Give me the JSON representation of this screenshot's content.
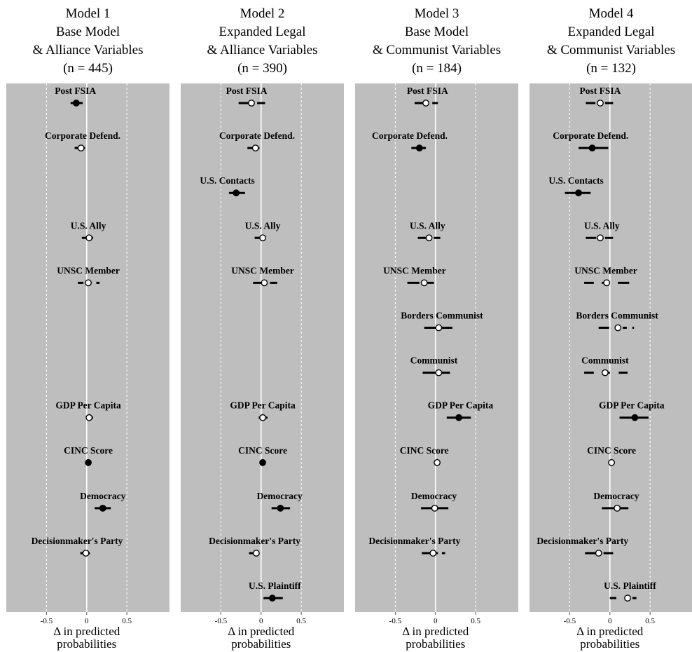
{
  "chart_data": {
    "type": "dot-whisker",
    "xaxis": {
      "label_line1": "Δ in predicted",
      "label_line2": "probabilities",
      "ticks": [
        -0.5,
        0,
        0.5
      ],
      "tick_labels": [
        "-0.5",
        "0",
        "0.5"
      ],
      "xlim": [
        -1.0,
        1.03
      ],
      "reference_lines": [
        -0.5,
        0,
        0.5
      ]
    },
    "legend": "none",
    "panel_background": "#bebebe",
    "significant_marker": "filled",
    "nonsignificant_marker": "hollow",
    "rows": [
      "Post FSIA",
      "Corporate Defend.",
      "U.S. Contacts",
      "U.S. Ally",
      "UNSC Member",
      "Borders Communist",
      "Communist",
      "GDP Per Capita",
      "CINC Score",
      "Democracy",
      "Decisionmaker's Party",
      "U.S. Plaintiff"
    ],
    "panels": [
      {
        "title": [
          "Model 1",
          "Base Model",
          "& Alliance Variables",
          "(n = 445)"
        ],
        "estimates": [
          {
            "variable": "Post FSIA",
            "label_text": "Post FSIA",
            "row": 0,
            "label_center": -0.14,
            "estimate": -0.13,
            "ci": [
              -0.2,
              -0.05
            ],
            "ci_segments": [
              [
                -0.2,
                -0.05
              ]
            ],
            "significant": true
          },
          {
            "variable": "Corporate Defend.",
            "label_text": "Corporate Defend.",
            "row": 1,
            "label_center": -0.05,
            "estimate": -0.07,
            "ci": [
              -0.15,
              -0.02
            ],
            "ci_segments": [
              [
                -0.15,
                -0.02
              ]
            ],
            "significant": false
          },
          {
            "variable": "U.S. Ally",
            "label_text": "U.S. Ally",
            "row": 3,
            "label_center": 0.02,
            "estimate": 0.03,
            "ci": [
              -0.06,
              0.08
            ],
            "ci_segments": [
              [
                -0.06,
                0.08
              ]
            ],
            "significant": false
          },
          {
            "variable": "UNSC Member",
            "label_text": "UNSC Member",
            "row": 4,
            "label_center": 0.02,
            "estimate": 0.02,
            "ci": [
              -0.11,
              0.16
            ],
            "ci_segments": [
              [
                -0.11,
                -0.04
              ],
              [
                0.12,
                0.16
              ]
            ],
            "significant": false
          },
          {
            "variable": "GDP Per Capita",
            "label_text": "GDP Per Capita",
            "row": 7,
            "label_center": 0.02,
            "estimate": 0.03,
            "ci": [
              -0.01,
              0.08
            ],
            "ci_segments": [
              [
                -0.01,
                0.08
              ]
            ],
            "significant": false
          },
          {
            "variable": "CINC Score",
            "label_text": "CINC Score",
            "row": 8,
            "label_center": 0.02,
            "estimate": 0.02,
            "ci": [
              0.0,
              0.04
            ],
            "ci_segments": [
              [
                0.0,
                0.04
              ]
            ],
            "significant": true
          },
          {
            "variable": "Democracy",
            "label_text": "Democracy",
            "row": 9,
            "label_center": 0.2,
            "estimate": 0.2,
            "ci": [
              0.1,
              0.3
            ],
            "ci_segments": [
              [
                0.1,
                0.3
              ]
            ],
            "significant": true
          },
          {
            "variable": "Decisionmaker's Party",
            "label_text": "Decisionmaker's Party",
            "row": 10,
            "label_center": -0.12,
            "estimate": -0.01,
            "ci": [
              -0.08,
              0.04
            ],
            "ci_segments": [
              [
                -0.08,
                0.04
              ]
            ],
            "significant": false
          }
        ]
      },
      {
        "title": [
          "Model 2",
          "Expanded Legal",
          "& Alliance Variables",
          "(n = 390)"
        ],
        "estimates": [
          {
            "variable": "Post FSIA",
            "label_text": "Post FSIA",
            "row": 0,
            "label_center": -0.18,
            "estimate": -0.12,
            "ci": [
              -0.28,
              0.05
            ],
            "ci_segments": [
              [
                -0.28,
                -0.15
              ],
              [
                -0.05,
                0.05
              ]
            ],
            "significant": false
          },
          {
            "variable": "Corporate Defend.",
            "label_text": "Corporate Defend.",
            "row": 1,
            "label_center": -0.05,
            "estimate": -0.07,
            "ci": [
              -0.17,
              -0.02
            ],
            "ci_segments": [
              [
                -0.17,
                -0.02
              ]
            ],
            "significant": false
          },
          {
            "variable": "U.S. Contacts",
            "label_text": "U.S. Contacts",
            "row": 2,
            "label_center": -0.42,
            "estimate": -0.31,
            "ci": [
              -0.4,
              -0.2
            ],
            "ci_segments": [
              [
                -0.4,
                -0.2
              ]
            ],
            "significant": true
          },
          {
            "variable": "U.S. Ally",
            "label_text": "U.S. Ally",
            "row": 3,
            "label_center": 0.02,
            "estimate": 0.02,
            "ci": [
              -0.08,
              0.06
            ],
            "ci_segments": [
              [
                -0.08,
                0.06
              ]
            ],
            "significant": false
          },
          {
            "variable": "UNSC Member",
            "label_text": "UNSC Member",
            "row": 4,
            "label_center": 0.02,
            "estimate": 0.04,
            "ci": [
              -0.1,
              0.2
            ],
            "ci_segments": [
              [
                -0.1,
                0.0
              ],
              [
                0.11,
                0.2
              ]
            ],
            "significant": false
          },
          {
            "variable": "GDP Per Capita",
            "label_text": "GDP Per Capita",
            "row": 7,
            "label_center": 0.02,
            "estimate": 0.02,
            "ci": [
              -0.03,
              0.08
            ],
            "ci_segments": [
              [
                -0.03,
                0.08
              ]
            ],
            "significant": false
          },
          {
            "variable": "CINC Score",
            "label_text": "CINC Score",
            "row": 8,
            "label_center": 0.02,
            "estimate": 0.02,
            "ci": [
              0.0,
              0.04
            ],
            "ci_segments": [
              [
                0.0,
                0.04
              ]
            ],
            "significant": true
          },
          {
            "variable": "Democracy",
            "label_text": "Democracy",
            "row": 9,
            "label_center": 0.23,
            "estimate": 0.24,
            "ci": [
              0.13,
              0.36
            ],
            "ci_segments": [
              [
                0.13,
                0.36
              ]
            ],
            "significant": true
          },
          {
            "variable": "Decisionmaker's Party",
            "label_text": "Decisionmaker's Party",
            "row": 10,
            "label_center": -0.08,
            "estimate": -0.06,
            "ci": [
              -0.15,
              -0.02
            ],
            "ci_segments": [
              [
                -0.15,
                -0.02
              ]
            ],
            "significant": false
          },
          {
            "variable": "U.S. Plaintiff",
            "label_text": "U.S. Plaintiff",
            "row": 11,
            "label_center": 0.17,
            "estimate": 0.14,
            "ci": [
              0.03,
              0.27
            ],
            "ci_segments": [
              [
                0.03,
                0.27
              ]
            ],
            "significant": true
          }
        ]
      },
      {
        "title": [
          "Model 3",
          "Base Model",
          "& Communist Variables",
          "(n = 184)"
        ],
        "estimates": [
          {
            "variable": "Post FSIA",
            "label_text": "Post FSIA",
            "row": 0,
            "label_center": -0.1,
            "estimate": -0.12,
            "ci": [
              -0.26,
              0.03
            ],
            "ci_segments": [
              [
                -0.26,
                -0.15
              ],
              [
                -0.04,
                0.03
              ]
            ],
            "significant": false
          },
          {
            "variable": "Corporate Defend.",
            "label_text": "Corporate Defend.",
            "row": 1,
            "label_center": -0.32,
            "estimate": -0.2,
            "ci": [
              -0.3,
              -0.12
            ],
            "ci_segments": [
              [
                -0.3,
                -0.12
              ]
            ],
            "significant": true
          },
          {
            "variable": "U.S. Ally",
            "label_text": "U.S. Ally",
            "row": 3,
            "label_center": -0.1,
            "estimate": -0.08,
            "ci": [
              -0.22,
              0.06
            ],
            "ci_segments": [
              [
                -0.22,
                -0.11
              ],
              [
                -0.02,
                0.06
              ]
            ],
            "significant": false
          },
          {
            "variable": "UNSC Member",
            "label_text": "UNSC Member",
            "row": 4,
            "label_center": -0.26,
            "estimate": -0.14,
            "ci": [
              -0.35,
              -0.02
            ],
            "ci_segments": [
              [
                -0.35,
                -0.2
              ],
              [
                -0.1,
                -0.02
              ]
            ],
            "significant": false
          },
          {
            "variable": "Borders Communist",
            "label_text": "Borders Communist",
            "row": 5,
            "label_center": 0.08,
            "estimate": 0.04,
            "ci": [
              -0.14,
              0.21
            ],
            "ci_segments": [
              [
                -0.14,
                0.21
              ]
            ],
            "significant": false
          },
          {
            "variable": "Communist",
            "label_text": "Communist",
            "row": 6,
            "label_center": -0.02,
            "estimate": 0.04,
            "ci": [
              -0.16,
              0.18
            ],
            "ci_segments": [
              [
                -0.16,
                0.18
              ]
            ],
            "significant": false
          },
          {
            "variable": "GDP Per Capita",
            "label_text": "GDP Per Capita",
            "row": 7,
            "label_center": 0.31,
            "estimate": 0.29,
            "ci": [
              0.14,
              0.44
            ],
            "ci_segments": [
              [
                0.14,
                0.44
              ]
            ],
            "significant": true
          },
          {
            "variable": "CINC Score",
            "label_text": "CINC Score",
            "row": 8,
            "label_center": -0.14,
            "estimate": 0.02,
            "ci": [
              0.0,
              0.04
            ],
            "ci_segments": [
              [
                0.0,
                0.04
              ]
            ],
            "significant": false
          },
          {
            "variable": "Democracy",
            "label_text": "Democracy",
            "row": 9,
            "label_center": -0.02,
            "estimate": -0.01,
            "ci": [
              -0.18,
              0.16
            ],
            "ci_segments": [
              [
                -0.18,
                0.16
              ]
            ],
            "significant": false
          },
          {
            "variable": "Decisionmaker's Party",
            "label_text": "Decisionmaker's Party",
            "row": 10,
            "label_center": -0.26,
            "estimate": -0.03,
            "ci": [
              -0.17,
              0.12
            ],
            "ci_segments": [
              [
                -0.17,
                0.03
              ],
              [
                0.08,
                0.12
              ]
            ],
            "significant": false
          }
        ]
      },
      {
        "title": [
          "Model 4",
          "Expanded Legal",
          "& Communist Variables",
          "(n = 132)"
        ],
        "estimates": [
          {
            "variable": "Post FSIA",
            "label_text": "Post FSIA",
            "row": 0,
            "label_center": -0.12,
            "estimate": -0.12,
            "ci": [
              -0.3,
              0.04
            ],
            "ci_segments": [
              [
                -0.3,
                -0.18
              ],
              [
                -0.06,
                0.04
              ]
            ],
            "significant": false
          },
          {
            "variable": "Corporate Defend.",
            "label_text": "Corporate Defend.",
            "row": 1,
            "label_center": -0.24,
            "estimate": -0.22,
            "ci": [
              -0.39,
              -0.02
            ],
            "ci_segments": [
              [
                -0.39,
                -0.02
              ]
            ],
            "significant": true
          },
          {
            "variable": "U.S. Contacts",
            "label_text": "U.S. Contacts",
            "row": 2,
            "label_center": -0.42,
            "estimate": -0.39,
            "ci": [
              -0.56,
              -0.24
            ],
            "ci_segments": [
              [
                -0.56,
                -0.24
              ]
            ],
            "significant": true
          },
          {
            "variable": "U.S. Ally",
            "label_text": "U.S. Ally",
            "row": 3,
            "label_center": -0.1,
            "estimate": -0.12,
            "ci": [
              -0.3,
              0.04
            ],
            "ci_segments": [
              [
                -0.3,
                -0.17
              ],
              [
                -0.06,
                0.04
              ]
            ],
            "significant": false
          },
          {
            "variable": "UNSC Member",
            "label_text": "UNSC Member",
            "row": 4,
            "label_center": -0.05,
            "estimate": -0.04,
            "ci": [
              -0.32,
              0.24
            ],
            "ci_segments": [
              [
                -0.32,
                -0.2
              ],
              [
                -0.1,
                -0.05
              ],
              [
                0.1,
                0.24
              ]
            ],
            "significant": false
          },
          {
            "variable": "Borders Communist",
            "label_text": "Borders Communist",
            "row": 5,
            "label_center": 0.09,
            "estimate": 0.1,
            "ci": [
              -0.14,
              0.3
            ],
            "ci_segments": [
              [
                -0.14,
                -0.01
              ],
              [
                0.16,
                0.21
              ],
              [
                0.28,
                0.3
              ]
            ],
            "significant": false
          },
          {
            "variable": "Communist",
            "label_text": "Communist",
            "row": 6,
            "label_center": -0.06,
            "estimate": -0.06,
            "ci": [
              -0.32,
              0.22
            ],
            "ci_segments": [
              [
                -0.32,
                -0.2
              ],
              [
                -0.08,
                0.0
              ],
              [
                0.11,
                0.22
              ]
            ],
            "significant": false
          },
          {
            "variable": "GDP Per Capita",
            "label_text": "GDP Per Capita",
            "row": 7,
            "label_center": 0.27,
            "estimate": 0.31,
            "ci": [
              0.12,
              0.48
            ],
            "ci_segments": [
              [
                0.12,
                0.48
              ]
            ],
            "significant": true
          },
          {
            "variable": "CINC Score",
            "label_text": "CINC Score",
            "row": 8,
            "label_center": 0.02,
            "estimate": 0.02,
            "ci": [
              -0.02,
              0.06
            ],
            "ci_segments": [
              [
                -0.02,
                0.06
              ]
            ],
            "significant": false
          },
          {
            "variable": "Democracy",
            "label_text": "Democracy",
            "row": 9,
            "label_center": 0.08,
            "estimate": 0.09,
            "ci": [
              -0.1,
              0.23
            ],
            "ci_segments": [
              [
                -0.1,
                0.23
              ]
            ],
            "significant": false
          },
          {
            "variable": "Decisionmaker's Party",
            "label_text": "Decisionmaker's Party",
            "row": 10,
            "label_center": -0.34,
            "estimate": -0.14,
            "ci": [
              -0.31,
              0.04
            ],
            "ci_segments": [
              [
                -0.31,
                -0.18
              ],
              [
                -0.08,
                0.04
              ]
            ],
            "significant": false
          },
          {
            "variable": "U.S. Plaintiff",
            "label_text": "U.S. Plaintiff",
            "row": 11,
            "label_center": 0.25,
            "estimate": 0.22,
            "ci": [
              0.0,
              0.33
            ],
            "ci_segments": [
              [
                0.0,
                0.08
              ],
              [
                0.28,
                0.33
              ]
            ],
            "significant": false
          }
        ]
      }
    ]
  }
}
